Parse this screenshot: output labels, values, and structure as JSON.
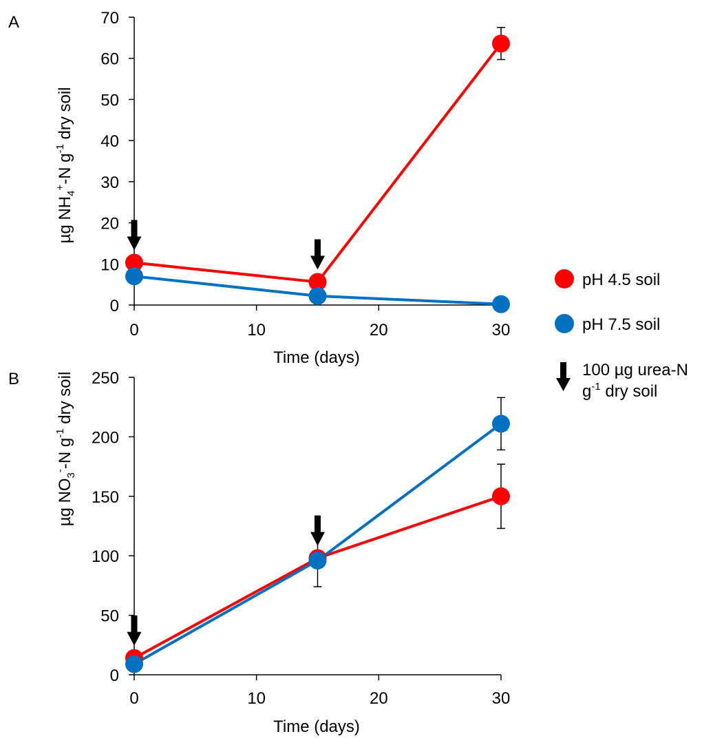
{
  "colors": {
    "ph45": "#ff0000",
    "ph75": "#0070c0",
    "arrow": "#000000"
  },
  "legend": {
    "items": [
      {
        "label": "pH 4.5 soil",
        "color": "#ff0000",
        "marker": "circle"
      },
      {
        "label": "pH 7.5 soil",
        "color": "#0070c0",
        "marker": "circle"
      }
    ],
    "arrow": {
      "icon": "down-arrow-icon",
      "line1": "100 µg urea-N",
      "line2_pre": "g",
      "line2_sup": "-1",
      "line2_post": " dry soil"
    }
  },
  "chart_data": [
    {
      "type": "line",
      "panel": "A",
      "xlabel": "Time (days)",
      "ylabel": {
        "pre": "µg NH",
        "sub1": "4",
        "sup1": "+",
        "mid": "-N g",
        "sup2": "-1",
        "post": " dry soil"
      },
      "xlim": [
        0,
        30
      ],
      "ylim": [
        0,
        70
      ],
      "xticks": [
        0,
        10,
        20,
        30
      ],
      "yticks": [
        0,
        10,
        20,
        30,
        40,
        50,
        60,
        70
      ],
      "x": [
        0,
        15,
        30
      ],
      "series": [
        {
          "name": "pH 4.5 soil",
          "color": "#ff0000",
          "values": [
            10.3,
            5.6,
            63.6
          ],
          "error": [
            null,
            null,
            3.9
          ]
        },
        {
          "name": "pH 7.5 soil",
          "color": "#0070c0",
          "values": [
            7.0,
            2.2,
            0.2
          ],
          "error": [
            null,
            null,
            null
          ]
        }
      ],
      "urea_additions_days": [
        0,
        15
      ]
    },
    {
      "type": "line",
      "panel": "B",
      "xlabel": "Time (days)",
      "ylabel": {
        "pre": "µg NO",
        "sub1": "3",
        "sup1": "-",
        "mid": "-N g",
        "sup2": "-1",
        "post": " dry soil"
      },
      "xlim": [
        0,
        30
      ],
      "ylim": [
        0,
        250
      ],
      "xticks": [
        0,
        10,
        20,
        30
      ],
      "yticks": [
        0,
        50,
        100,
        150,
        200,
        250
      ],
      "x": [
        0,
        15,
        30
      ],
      "series": [
        {
          "name": "pH 4.5 soil",
          "color": "#ff0000",
          "values": [
            14,
            98,
            150
          ],
          "error": [
            null,
            null,
            27
          ]
        },
        {
          "name": "pH 7.5 soil",
          "color": "#0070c0",
          "values": [
            9,
            96,
            211
          ],
          "error": [
            null,
            22,
            22
          ]
        }
      ],
      "urea_additions_days": [
        0,
        15
      ]
    }
  ]
}
